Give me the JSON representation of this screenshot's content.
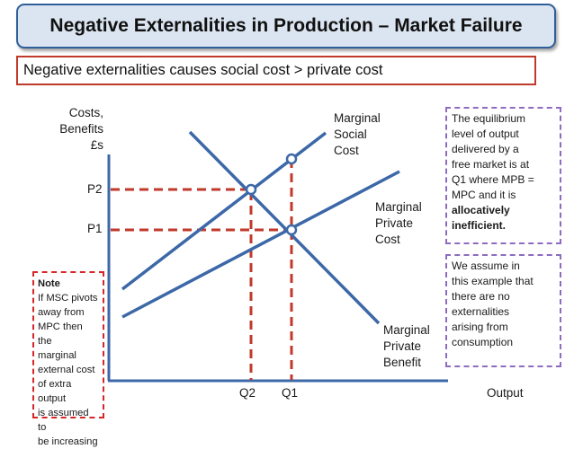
{
  "title": "Negative Externalities in Production – Market Failure",
  "subtitle": "Negative externalities causes social cost > private cost",
  "axes": {
    "y_label_lines": [
      "Costs,",
      "Benefits",
      "£s"
    ],
    "x_label": "Output",
    "p2": "P2",
    "p1": "P1",
    "q2": "Q2",
    "q1": "Q1"
  },
  "curves": {
    "msc_lines": [
      "Marginal",
      "Social",
      "Cost"
    ],
    "mpc_lines": [
      "Marginal",
      "Private",
      "Cost"
    ],
    "mpb_lines": [
      "Marginal",
      "Private",
      "Benefit"
    ]
  },
  "notes": {
    "left_heading": "Note",
    "left_lines": [
      "If MSC pivots",
      "away from",
      "MPC then the",
      "marginal",
      "external cost",
      "of extra output",
      "is assumed to",
      "be increasing"
    ],
    "eq_lines": [
      "The equilibrium",
      "level of output",
      "delivered by a",
      "free market is at",
      "Q1 where MPB =",
      "MPC and it is"
    ],
    "eq_bold_lines": [
      "allocatively",
      "inefficient."
    ],
    "assume_lines": [
      "We assume in",
      "this example that",
      "there are no",
      "externalities",
      "arising from",
      "consumption"
    ]
  },
  "colors": {
    "title_bg": "#dbe5f1",
    "title_border": "#2f5f99",
    "curve": "#3c68a8",
    "dashed_guides": "#c0392b",
    "note_left_border": "#d62728",
    "note_right_border": "#8e6bbf"
  }
}
